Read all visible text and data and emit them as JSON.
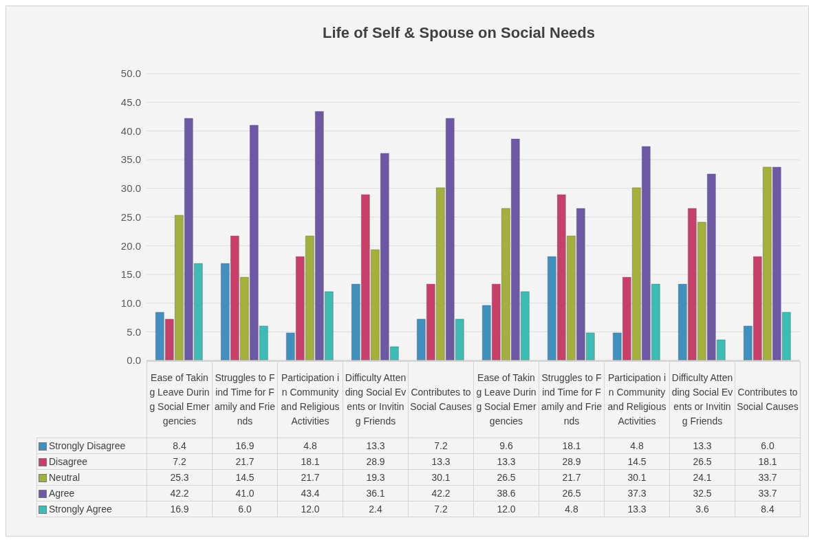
{
  "chart_data": {
    "type": "bar",
    "title": "Life of Self & Spouse on Social Needs",
    "categories": [
      "Ease of Taking Leave During Social Emergencies",
      "Struggles to Find Time for Family and Friends",
      "Participation in Community and Religious Activities",
      "Difficulty Attending Social Events or Inviting Friends",
      "Contributes to Social Causes",
      "Ease of Taking Leave During Social Emergencies",
      "Struggles to Find Time for Family and Friends",
      "Participation in Community and Religious Activities",
      "Difficulty Attending Social Events or Inviting Friends",
      "Contributes to Social Causes"
    ],
    "series": [
      {
        "name": "Strongly Disagree",
        "color": "#3f8fbf",
        "values": [
          8.4,
          16.9,
          4.8,
          13.3,
          7.2,
          9.6,
          18.1,
          4.8,
          13.3,
          6.0
        ],
        "value_labels": [
          "8.4",
          "16.9",
          "4.8",
          "13.3",
          "7.2",
          "9.6",
          "18.1",
          "4.8",
          "13.3",
          "6.0"
        ]
      },
      {
        "name": "Disagree",
        "color": "#c8406a",
        "values": [
          7.2,
          21.7,
          18.1,
          28.9,
          13.3,
          13.3,
          28.9,
          14.5,
          26.5,
          18.1
        ],
        "value_labels": [
          "7.2",
          "21.7",
          "18.1",
          "28.9",
          "13.3",
          "13.3",
          "28.9",
          "14.5",
          "26.5",
          "18.1"
        ]
      },
      {
        "name": "Neutral",
        "color": "#a4b03c",
        "values": [
          25.3,
          14.5,
          21.7,
          19.3,
          30.1,
          26.5,
          21.7,
          30.1,
          24.1,
          33.7
        ],
        "value_labels": [
          "25.3",
          "14.5",
          "21.7",
          "19.3",
          "30.1",
          "26.5",
          "21.7",
          "30.1",
          "24.1",
          "33.7"
        ]
      },
      {
        "name": "Agree",
        "color": "#6c58a4",
        "values": [
          42.2,
          41.0,
          43.4,
          36.1,
          42.2,
          38.6,
          26.5,
          37.3,
          32.5,
          33.7
        ],
        "value_labels": [
          "42.2",
          "41.0",
          "43.4",
          "36.1",
          "42.2",
          "38.6",
          "26.5",
          "37.3",
          "32.5",
          "33.7"
        ]
      },
      {
        "name": "Strongly Agree",
        "color": "#3cbcb4",
        "values": [
          16.9,
          6.0,
          12.0,
          2.4,
          7.2,
          12.0,
          4.8,
          13.3,
          3.6,
          8.4
        ],
        "value_labels": [
          "16.9",
          "6.0",
          "12.0",
          "2.4",
          "7.2",
          "12.0",
          "4.8",
          "13.3",
          "3.6",
          "8.4"
        ]
      }
    ],
    "ylim": [
      0,
      50
    ],
    "yticks": [
      {
        "value": 0,
        "label": "0.0"
      },
      {
        "value": 5,
        "label": "5.0"
      },
      {
        "value": 10,
        "label": "10.0"
      },
      {
        "value": 15,
        "label": "15.0"
      },
      {
        "value": 20,
        "label": "20.0"
      },
      {
        "value": 25,
        "label": "25.0"
      },
      {
        "value": 30,
        "label": "30.0"
      },
      {
        "value": 35,
        "label": "35.0"
      },
      {
        "value": 40,
        "label": "40.0"
      },
      {
        "value": 45,
        "label": "45.0"
      },
      {
        "value": 50,
        "label": "50.0"
      }
    ],
    "grid": "y",
    "legend": "bottom"
  }
}
